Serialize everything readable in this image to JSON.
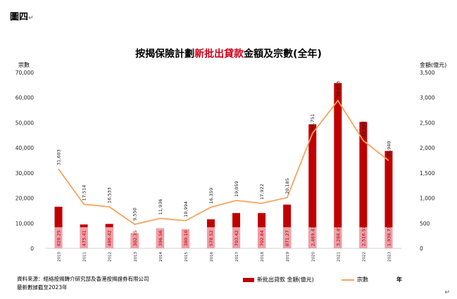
{
  "figure": {
    "label": "圖四",
    "mark": "↵",
    "end_mark": "↵"
  },
  "title": {
    "part1": "按揭保險計劃",
    "accent": "新批出貸款",
    "part2": "金額及宗數(全年)"
  },
  "source": {
    "line1": "資料來源：經絡按揭轉介研究部及香港按揭證券有限公司",
    "line2": "最新數據截至2023年"
  },
  "legend": {
    "bar": "新批出貸款 金額(億元)",
    "line": "宗數",
    "year": "年"
  },
  "colors": {
    "bar": "#c00000",
    "bar_inner": "#f0a0a8",
    "line": "#f4a460"
  },
  "chart_data": {
    "type": "bar",
    "title": "按揭保險計劃新批出貸款金額及宗數(全年)",
    "categories": [
      "2010",
      "2011",
      "2012",
      "2013",
      "2014",
      "2015",
      "2016",
      "2017",
      "2018",
      "2019",
      "2020",
      "2021",
      "2022",
      "2023"
    ],
    "left_axis": {
      "label": "宗數",
      "ylim": [
        0,
        70000
      ],
      "ticks": [
        "0",
        "10,000",
        "20,000",
        "30,000",
        "40,000",
        "50,000",
        "60,000",
        "70,000"
      ]
    },
    "right_axis": {
      "label": "金額(億元)",
      "ylim": [
        0,
        3500
      ],
      "ticks": [
        "0",
        "500",
        "1,000",
        "1,500",
        "2,000",
        "2,500",
        "3,000",
        "3,500"
      ]
    },
    "xlabel": "年",
    "series": [
      {
        "name": "新批出貸款 金額(億元)",
        "kind": "bar",
        "axis": "right",
        "values": [
          828.25,
          475.41,
          486.42,
          302.35,
          396.56,
          380.1,
          578.52,
          703.42,
          702.84,
          871.27,
          2469.47,
          3288.45,
          2516.57,
          1938.71
        ],
        "labels": [
          "828.25",
          "475.41",
          "486.42",
          "302.35",
          "396.56",
          "380.10",
          "578.52",
          "703.42",
          "702.84",
          "871.27",
          "2,469.47",
          "3,288.45",
          "2,516.57",
          "1,938.71"
        ]
      },
      {
        "name": "宗數",
        "kind": "line",
        "axis": "left",
        "values": [
          31603,
          17514,
          16533,
          9550,
          11936,
          10994,
          16359,
          19059,
          17922,
          20185,
          45751,
          58813,
          42882,
          34940
        ],
        "labels": [
          "31,603",
          "17,514",
          "16,533",
          "9,550",
          "11,936",
          "10,994",
          "16,359",
          "19,059",
          "17,922",
          "20,185",
          "45,751",
          "58,813",
          "42,882",
          "34,940"
        ]
      }
    ],
    "legend_position": "bottom",
    "grid": false
  }
}
